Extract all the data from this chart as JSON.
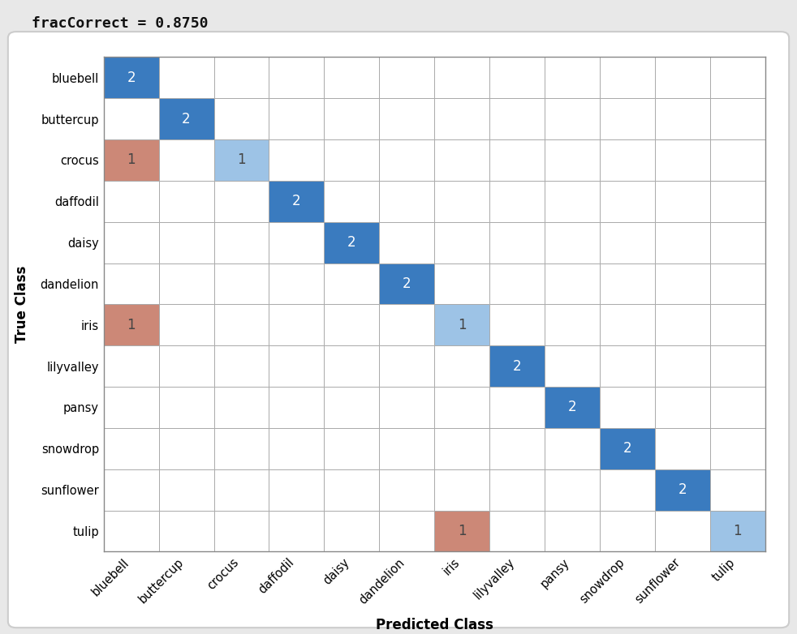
{
  "classes": [
    "bluebell",
    "buttercup",
    "crocus",
    "daffodil",
    "daisy",
    "dandelion",
    "iris",
    "lilyvalley",
    "pansy",
    "snowdrop",
    "sunflower",
    "tulip"
  ],
  "matrix": [
    [
      2,
      0,
      0,
      0,
      0,
      0,
      0,
      0,
      0,
      0,
      0,
      0
    ],
    [
      0,
      2,
      0,
      0,
      0,
      0,
      0,
      0,
      0,
      0,
      0,
      0
    ],
    [
      1,
      0,
      1,
      0,
      0,
      0,
      0,
      0,
      0,
      0,
      0,
      0
    ],
    [
      0,
      0,
      0,
      2,
      0,
      0,
      0,
      0,
      0,
      0,
      0,
      0
    ],
    [
      0,
      0,
      0,
      0,
      2,
      0,
      0,
      0,
      0,
      0,
      0,
      0
    ],
    [
      0,
      0,
      0,
      0,
      0,
      2,
      0,
      0,
      0,
      0,
      0,
      0
    ],
    [
      1,
      0,
      0,
      0,
      0,
      0,
      1,
      0,
      0,
      0,
      0,
      0
    ],
    [
      0,
      0,
      0,
      0,
      0,
      0,
      0,
      2,
      0,
      0,
      0,
      0
    ],
    [
      0,
      0,
      0,
      0,
      0,
      0,
      0,
      0,
      2,
      0,
      0,
      0
    ],
    [
      0,
      0,
      0,
      0,
      0,
      0,
      0,
      0,
      0,
      2,
      0,
      0
    ],
    [
      0,
      0,
      0,
      0,
      0,
      0,
      0,
      0,
      0,
      0,
      2,
      0
    ],
    [
      0,
      0,
      0,
      0,
      0,
      0,
      1,
      0,
      0,
      0,
      0,
      1
    ]
  ],
  "title": "fracCorrect = 0.8750",
  "xlabel": "Predicted Class",
  "ylabel": "True Class",
  "fig_width": 9.82,
  "fig_height": 7.82,
  "bg_color": "#e8e8e8",
  "axes_bg_color": "#ffffff",
  "title_fontsize": 13,
  "label_fontsize": 12,
  "tick_fontsize": 10.5,
  "cell_fontsize": 12,
  "dark_blue": "#3a7bbf",
  "medium_blue": "#5b9bd5",
  "light_blue": "#9dc3e6",
  "salmon": "#cc8877",
  "text_white": "#ffffff",
  "text_dark": "#444444"
}
